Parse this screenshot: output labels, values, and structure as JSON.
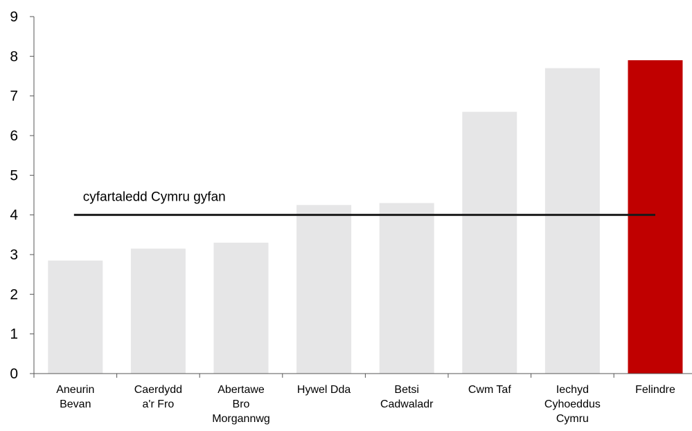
{
  "chart_data": {
    "type": "bar",
    "categories": [
      "Aneurin\nBevan",
      "Caerdydd\na'r Fro",
      "Abertawe\nBro\nMorgannwg",
      "Hywel Dda",
      "Betsi\nCadwaladr",
      "Cwm Taf",
      "Iechyd\nCyhoeddus\nCymru",
      "Felindre"
    ],
    "values": [
      2.85,
      3.15,
      3.3,
      4.25,
      4.3,
      6.6,
      7.7,
      7.9
    ],
    "colors": [
      "#e6e6e7",
      "#e6e6e7",
      "#e6e6e7",
      "#e6e6e7",
      "#e6e6e7",
      "#e6e6e7",
      "#e6e6e7",
      "#c00000"
    ],
    "reference_line": {
      "value": 4,
      "label": "cyfartaledd Cymru gyfan",
      "color": "#1a1a1a"
    },
    "ylim": [
      0,
      9
    ],
    "yticks": [
      0,
      1,
      2,
      3,
      4,
      5,
      6,
      7,
      8,
      9
    ],
    "grid": false
  }
}
